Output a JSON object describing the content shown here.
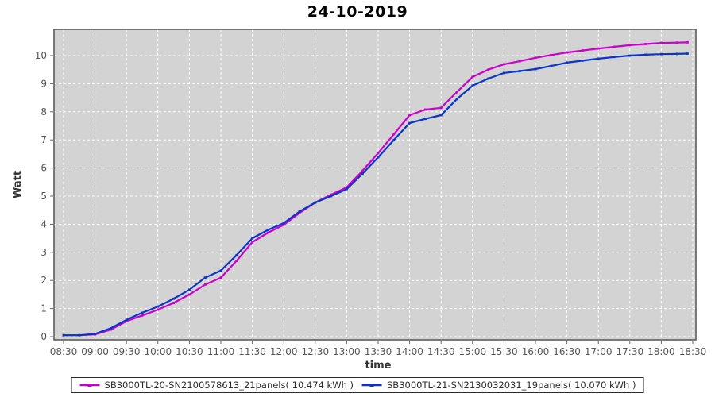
{
  "page": {
    "background": "#ffffff"
  },
  "chart_data": {
    "type": "line",
    "title": "24-10-2019",
    "xlabel": "time",
    "ylabel": "Watt",
    "legend_position": "bottom",
    "grid": true,
    "plot_background": "#d3d3d3",
    "grid_color": "#ffffff",
    "plot_border_color": "#545454",
    "tick_label_color": "#555555",
    "axis_title_color": "#333333",
    "ylim": [
      0,
      10.95
    ],
    "y_ticks": [
      0,
      1,
      2,
      3,
      4,
      5,
      6,
      7,
      8,
      9,
      10
    ],
    "x_tick_labels": [
      "08:30",
      "09:00",
      "09:30",
      "10:00",
      "10:30",
      "11:00",
      "11:30",
      "12:00",
      "12:30",
      "13:00",
      "13:30",
      "14:00",
      "14:30",
      "15:00",
      "15:30",
      "16:00",
      "16:30",
      "17:00",
      "17:30",
      "18:00",
      "18:30"
    ],
    "x": [
      "08:30",
      "08:45",
      "09:00",
      "09:15",
      "09:30",
      "09:45",
      "10:00",
      "10:15",
      "10:30",
      "10:45",
      "11:00",
      "11:15",
      "11:30",
      "11:45",
      "12:00",
      "12:15",
      "12:30",
      "12:45",
      "13:00",
      "13:15",
      "13:30",
      "13:45",
      "14:00",
      "14:15",
      "14:30",
      "14:45",
      "15:00",
      "15:15",
      "15:30",
      "15:45",
      "16:00",
      "16:15",
      "16:30",
      "16:45",
      "17:00",
      "17:15",
      "17:30",
      "17:45",
      "18:00",
      "18:15",
      "18:25"
    ],
    "series": [
      {
        "name": "SB3000TL-20-SN2100578613_21panels( 10.474 kWh )",
        "color": "#cc00cc",
        "total_kwh": "10.474",
        "values": [
          0.05,
          0.05,
          0.08,
          0.25,
          0.55,
          0.75,
          0.96,
          1.2,
          1.5,
          1.85,
          2.1,
          2.7,
          3.36,
          3.7,
          3.98,
          4.4,
          4.77,
          5.05,
          5.31,
          5.9,
          6.53,
          7.2,
          7.88,
          8.08,
          8.14,
          8.7,
          9.24,
          9.5,
          9.69,
          9.8,
          9.92,
          10.02,
          10.11,
          10.18,
          10.25,
          10.31,
          10.37,
          10.41,
          10.45,
          10.46,
          10.47
        ]
      },
      {
        "name": "SB3000TL-21-SN2130032031_19panels( 10.070 kWh )",
        "color": "#0a35cc",
        "total_kwh": "10.070",
        "values": [
          0.05,
          0.05,
          0.1,
          0.3,
          0.6,
          0.85,
          1.07,
          1.35,
          1.67,
          2.1,
          2.35,
          2.9,
          3.5,
          3.8,
          4.04,
          4.45,
          4.77,
          5.0,
          5.25,
          5.8,
          6.38,
          7.0,
          7.6,
          7.75,
          7.88,
          8.45,
          8.93,
          9.18,
          9.38,
          9.45,
          9.52,
          9.63,
          9.75,
          9.82,
          9.89,
          9.95,
          10.0,
          10.03,
          10.05,
          10.06,
          10.07
        ]
      }
    ]
  }
}
